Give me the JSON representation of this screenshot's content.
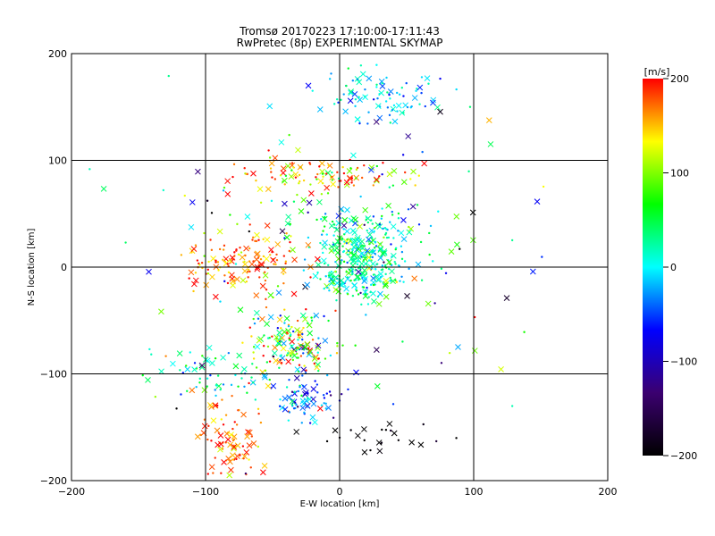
{
  "chart_data": {
    "type": "scatter",
    "title": "Tromsø 20170223 17:10:00-17:11:43",
    "subtitle": "RwPretec (8p) EXPERIMENTAL SKYMAP",
    "xlabel": "E-W location [km]",
    "ylabel": "N-S location [km]",
    "xlim": [
      -200,
      200
    ],
    "ylim": [
      -200,
      200
    ],
    "xticks": [
      -200,
      -100,
      0,
      100,
      200
    ],
    "yticks": [
      -200,
      -100,
      0,
      100,
      200
    ],
    "grid": true,
    "grid_lines": [
      -100,
      0,
      100
    ],
    "colorbar": {
      "label": "[m/s]",
      "range": [
        -200,
        200
      ],
      "ticks": [
        -200,
        -100,
        0,
        100,
        200
      ],
      "colors": [
        "#000000",
        "#3b0070",
        "#0000ff",
        "#00ffff",
        "#00ff00",
        "#ffff00",
        "#ff0000"
      ]
    },
    "clusters": [
      {
        "x": 15,
        "y": 5,
        "sx": 18,
        "sy": 18,
        "v": 20,
        "sv": 35,
        "n": 320
      },
      {
        "x": -75,
        "y": 5,
        "sx": 22,
        "sy": 14,
        "v": 170,
        "sv": 30,
        "n": 140
      },
      {
        "x": -35,
        "y": -70,
        "sx": 15,
        "sy": 18,
        "v": 80,
        "sv": 90,
        "n": 160
      },
      {
        "x": -15,
        "y": 85,
        "sx": 35,
        "sy": 8,
        "v": 150,
        "sv": 60,
        "n": 110
      },
      {
        "x": 30,
        "y": 160,
        "sx": 28,
        "sy": 12,
        "v": -10,
        "sv": 30,
        "n": 90
      },
      {
        "x": -80,
        "y": -165,
        "sx": 14,
        "sy": 22,
        "v": 180,
        "sv": 25,
        "n": 90
      },
      {
        "x": -25,
        "y": -125,
        "sx": 15,
        "sy": 12,
        "v": -50,
        "sv": 50,
        "n": 70
      },
      {
        "x": -95,
        "y": -100,
        "sx": 25,
        "sy": 12,
        "v": 20,
        "sv": 40,
        "n": 60
      },
      {
        "x": 30,
        "y": -160,
        "sx": 25,
        "sy": 8,
        "v": -200,
        "sv": 15,
        "n": 25
      },
      {
        "x": 20,
        "y": 40,
        "sx": 40,
        "sy": 12,
        "v": 20,
        "sv": 60,
        "n": 60
      },
      {
        "x": 0,
        "y": 0,
        "sx": 90,
        "sy": 90,
        "v": 0,
        "sv": 120,
        "n": 120
      }
    ]
  }
}
